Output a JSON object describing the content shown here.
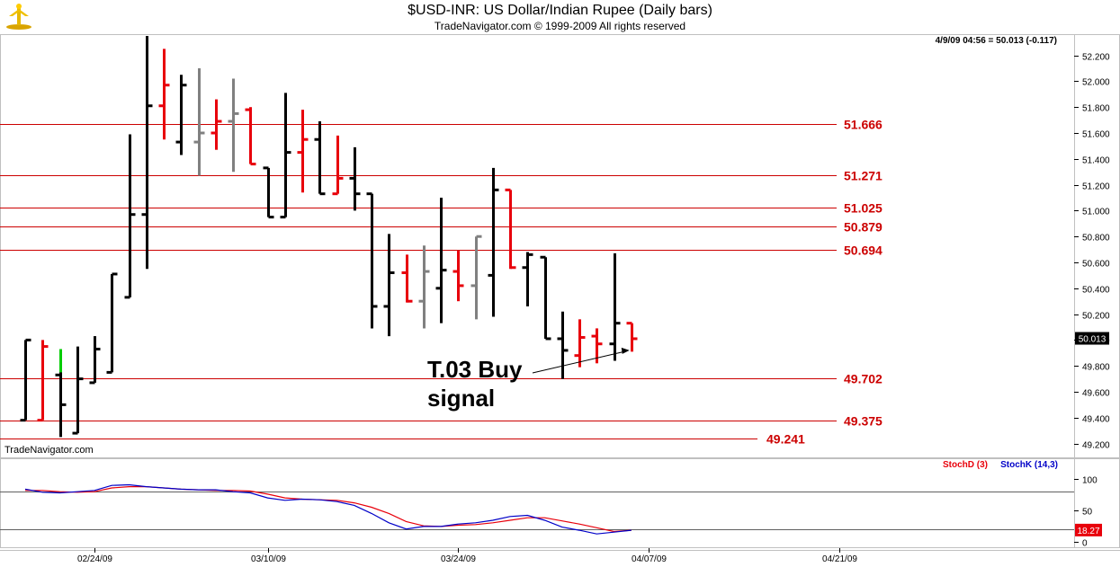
{
  "header": {
    "title": "$USD-INR:  US Dollar/Indian Rupee  (Daily bars)",
    "copyright": "TradeNavigator.com © 1999-2009 All rights reserved"
  },
  "chart_data": [
    {
      "type": "ohlc",
      "readout": "4/9/09 04:56 = 50.013 (-0.117)",
      "watermark": "TradeNavigator.com",
      "ylim": [
        49.1,
        52.35
      ],
      "yticks": [
        "52.200",
        "52.000",
        "51.800",
        "51.600",
        "51.400",
        "51.200",
        "51.000",
        "50.800",
        "50.600",
        "50.400",
        "50.200",
        "50.000",
        "49.800",
        "49.600",
        "49.400",
        "49.200"
      ],
      "ytick_values": [
        52.2,
        52.0,
        51.8,
        51.6,
        51.4,
        51.2,
        51.0,
        50.8,
        50.6,
        50.4,
        50.2,
        50.0,
        49.8,
        49.6,
        49.4,
        49.2
      ],
      "last_price_label": "50.013",
      "last_price": 50.013,
      "xticks": [
        "02/24/09",
        "03/10/09",
        "03/24/09",
        "04/07/09",
        "04/21/09"
      ],
      "xtick_bar_index": [
        4,
        14,
        25,
        36,
        47
      ],
      "levels": [
        {
          "value": 51.666,
          "label": "51.666"
        },
        {
          "value": 51.271,
          "label": "51.271"
        },
        {
          "value": 51.025,
          "label": "51.025"
        },
        {
          "value": 50.879,
          "label": "50.879"
        },
        {
          "value": 50.694,
          "label": "50.694"
        },
        {
          "value": 49.702,
          "label": "49.702"
        },
        {
          "value": 49.375,
          "label": "49.375"
        },
        {
          "value": 49.241,
          "label": "49.241"
        }
      ],
      "annotation": {
        "line1": "T.03 Buy",
        "line2": "signal",
        "target_bar": 35,
        "target_price": 49.92
      },
      "colors": {
        "up": "#000000",
        "down": "#e8000b",
        "gray": "#808080",
        "green": "#00cc00",
        "level": "#cc0000"
      },
      "bars": [
        {
          "o": 49.38,
          "h": 50.0,
          "l": 49.38,
          "c": 50.0,
          "color": "black"
        },
        {
          "o": 49.38,
          "h": 50.0,
          "l": 49.38,
          "c": 49.95,
          "color": "red"
        },
        {
          "o": 49.73,
          "h": 49.93,
          "l": 49.25,
          "c": 49.5,
          "color": "black",
          "top_color": "green"
        },
        {
          "o": 49.28,
          "h": 49.95,
          "l": 49.28,
          "c": 49.7,
          "color": "black"
        },
        {
          "o": 49.67,
          "h": 50.03,
          "l": 49.67,
          "c": 49.93,
          "color": "black"
        },
        {
          "o": 49.75,
          "h": 50.51,
          "l": 49.75,
          "c": 50.51,
          "color": "black"
        },
        {
          "o": 50.33,
          "h": 51.59,
          "l": 50.33,
          "c": 50.97,
          "color": "black"
        },
        {
          "o": 50.97,
          "h": 52.35,
          "l": 50.55,
          "c": 51.81,
          "color": "black"
        },
        {
          "o": 51.81,
          "h": 52.25,
          "l": 51.55,
          "c": 51.97,
          "color": "red"
        },
        {
          "o": 51.53,
          "h": 52.05,
          "l": 51.43,
          "c": 51.97,
          "color": "black"
        },
        {
          "o": 51.53,
          "h": 52.1,
          "l": 51.27,
          "c": 51.6,
          "color": "gray"
        },
        {
          "o": 51.6,
          "h": 51.86,
          "l": 51.47,
          "c": 51.69,
          "color": "red"
        },
        {
          "o": 51.69,
          "h": 52.02,
          "l": 51.3,
          "c": 51.75,
          "color": "gray"
        },
        {
          "o": 51.78,
          "h": 51.8,
          "l": 51.36,
          "c": 51.36,
          "color": "red"
        },
        {
          "o": 51.33,
          "h": 51.33,
          "l": 50.95,
          "c": 50.95,
          "color": "black"
        },
        {
          "o": 50.95,
          "h": 51.91,
          "l": 50.95,
          "c": 51.45,
          "color": "black"
        },
        {
          "o": 51.45,
          "h": 51.78,
          "l": 51.14,
          "c": 51.55,
          "color": "red"
        },
        {
          "o": 51.55,
          "h": 51.69,
          "l": 51.13,
          "c": 51.13,
          "color": "black"
        },
        {
          "o": 51.13,
          "h": 51.58,
          "l": 51.13,
          "c": 51.25,
          "color": "red"
        },
        {
          "o": 51.25,
          "h": 51.49,
          "l": 51.0,
          "c": 51.13,
          "color": "black"
        },
        {
          "o": 51.13,
          "h": 51.13,
          "l": 50.09,
          "c": 50.26,
          "color": "black"
        },
        {
          "o": 50.26,
          "h": 50.82,
          "l": 50.03,
          "c": 50.52,
          "color": "black"
        },
        {
          "o": 50.52,
          "h": 50.66,
          "l": 50.29,
          "c": 50.3,
          "color": "red"
        },
        {
          "o": 50.3,
          "h": 50.73,
          "l": 50.09,
          "c": 50.53,
          "color": "gray"
        },
        {
          "o": 50.4,
          "h": 51.1,
          "l": 50.13,
          "c": 50.54,
          "color": "black"
        },
        {
          "o": 50.53,
          "h": 50.69,
          "l": 50.3,
          "c": 50.42,
          "color": "red"
        },
        {
          "o": 50.42,
          "h": 50.8,
          "l": 50.16,
          "c": 50.8,
          "color": "gray"
        },
        {
          "o": 50.5,
          "h": 51.33,
          "l": 50.18,
          "c": 51.16,
          "color": "black"
        },
        {
          "o": 51.16,
          "h": 51.16,
          "l": 50.55,
          "c": 50.56,
          "color": "red"
        },
        {
          "o": 50.56,
          "h": 50.68,
          "l": 50.26,
          "c": 50.66,
          "color": "black"
        },
        {
          "o": 50.64,
          "h": 50.64,
          "l": 50.01,
          "c": 50.01,
          "color": "black"
        },
        {
          "o": 50.01,
          "h": 50.22,
          "l": 49.7,
          "c": 49.92,
          "color": "black"
        },
        {
          "o": 49.88,
          "h": 50.16,
          "l": 49.79,
          "c": 50.02,
          "color": "red"
        },
        {
          "o": 50.03,
          "h": 50.09,
          "l": 49.82,
          "c": 49.97,
          "color": "red"
        },
        {
          "o": 49.97,
          "h": 50.67,
          "l": 49.84,
          "c": 50.13,
          "color": "black"
        },
        {
          "o": 50.13,
          "h": 50.13,
          "l": 49.91,
          "c": 50.01,
          "color": "red"
        }
      ]
    },
    {
      "type": "line",
      "legend": [
        {
          "name": "StochD (3)",
          "color": "#e8000b"
        },
        {
          "name": "StochK (14,3)",
          "color": "#0000c8"
        }
      ],
      "ylim": [
        -5,
        112
      ],
      "yticks": [
        "100",
        "50",
        "0"
      ],
      "ytick_values": [
        100,
        50,
        0
      ],
      "ref_lines": [
        80,
        20
      ],
      "last_value_label": "18.27",
      "last_value": 18.27,
      "series": [
        {
          "name": "StochD (3)",
          "color": "#e8000b",
          "values": [
            82,
            82,
            80,
            79,
            80,
            86,
            88,
            88,
            86,
            84,
            83,
            82,
            82,
            81,
            76,
            70,
            68,
            67,
            66,
            62,
            55,
            45,
            32,
            25,
            24,
            26,
            27,
            30,
            34,
            38,
            38,
            33,
            28,
            22,
            16,
            18
          ]
        },
        {
          "name": "StochK (14,3)",
          "color": "#0000c8",
          "values": [
            84,
            79,
            78,
            80,
            82,
            90,
            91,
            88,
            86,
            84,
            83,
            83,
            80,
            78,
            70,
            66,
            68,
            67,
            64,
            58,
            45,
            30,
            20,
            24,
            24,
            28,
            30,
            34,
            40,
            42,
            34,
            23,
            18,
            12,
            15,
            18
          ]
        }
      ]
    }
  ]
}
